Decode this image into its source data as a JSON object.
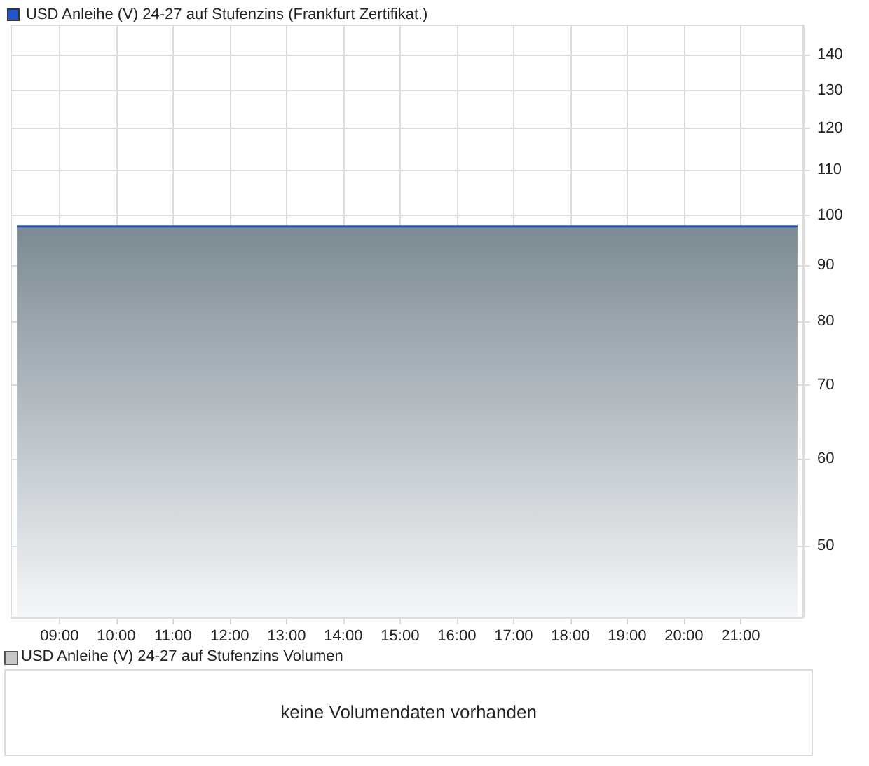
{
  "chart_data": [
    {
      "type": "area",
      "x": [
        8.25,
        22
      ],
      "series": [
        {
          "name": "USD Anleihe (V) 24-27 auf Stufenzins (Frankfurt Zertifikat.)",
          "color": "#2255cc",
          "values": [
            97.7,
            97.7
          ]
        }
      ],
      "log": "y",
      "ylim": [
        43,
        149
      ],
      "yticks": [
        50,
        60,
        70,
        80,
        90,
        100,
        110,
        120,
        130,
        140
      ],
      "xlim": [
        8.15,
        22.1
      ],
      "xticks": [
        {
          "value": 9,
          "label": "09:00"
        },
        {
          "value": 10,
          "label": "10:00"
        },
        {
          "value": 11,
          "label": "11:00"
        },
        {
          "value": 12,
          "label": "12:00"
        },
        {
          "value": 13,
          "label": "13:00"
        },
        {
          "value": 14,
          "label": "14:00"
        },
        {
          "value": 15,
          "label": "15:00"
        },
        {
          "value": 16,
          "label": "16:00"
        },
        {
          "value": 17,
          "label": "17:00"
        },
        {
          "value": 18,
          "label": "18:00"
        },
        {
          "value": 19,
          "label": "19:00"
        },
        {
          "value": 20,
          "label": "20:00"
        },
        {
          "value": 21,
          "label": "21:00"
        }
      ],
      "grid": true,
      "legend": "top left"
    },
    {
      "type": "other",
      "title": "USD Anleihe (V) 24-27 auf Stufenzins Volumen",
      "annotations": [
        "keine Volumendaten vorhanden"
      ]
    }
  ]
}
